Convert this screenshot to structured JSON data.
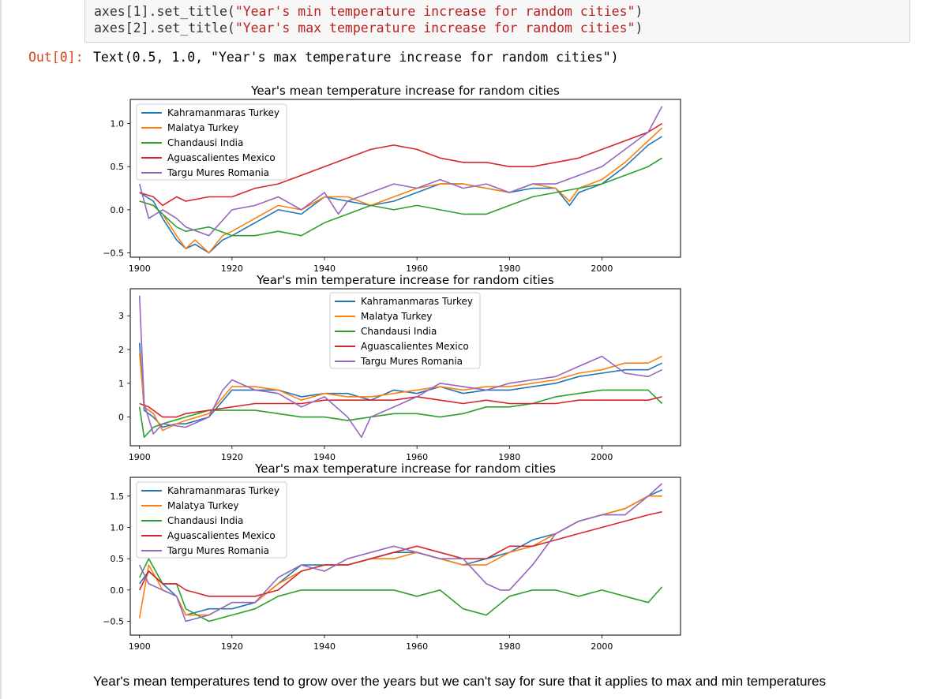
{
  "code_cell": {
    "lines": [
      "axes[1].set_title(\"Year's min temperature increase for random cities\")",
      "axes[2].set_title(\"Year's max temperature increase for random cities\")"
    ],
    "line_parts": [
      {
        "prefix": "axes[1].set_title(",
        "string": "\"Year's min temperature increase for random cities\"",
        "suffix": ")"
      },
      {
        "prefix": "axes[2].set_title(",
        "string": "\"Year's max temperature increase for random cities\"",
        "suffix": ")"
      }
    ]
  },
  "output": {
    "prompt": "Out[0]:",
    "text": "Text(0.5, 1.0, \"Year's max temperature increase for random cities\")"
  },
  "markdown": {
    "text": "Year's mean temperatures tend to grow over the years but we can't say for sure that it applies to max and min temperatures"
  },
  "series_colors": [
    "#1f77b4",
    "#ff7f0e",
    "#2ca02c",
    "#d62728",
    "#9467bd"
  ],
  "chart_data": [
    {
      "type": "line",
      "title": "Year's mean temperature increase for random cities",
      "xlabel": "",
      "ylabel": "",
      "xlim": [
        1898,
        2017
      ],
      "ylim": [
        -0.55,
        1.28
      ],
      "xticks": [
        1900,
        1920,
        1940,
        1960,
        1980,
        2000
      ],
      "yticks": [
        -0.5,
        0.0,
        0.5,
        1.0
      ],
      "ytick_labels": [
        "−0.5",
        "0.0",
        "0.5",
        "1.0"
      ],
      "legend_placement": "upper-left",
      "series": [
        {
          "name": "Kahramanmaras Turkey",
          "x": [
            1900,
            1903,
            1905,
            1908,
            1910,
            1912,
            1915,
            1918,
            1920,
            1925,
            1930,
            1935,
            1940,
            1945,
            1950,
            1955,
            1960,
            1965,
            1970,
            1975,
            1980,
            1985,
            1990,
            1993,
            1995,
            2000,
            2005,
            2010,
            2013
          ],
          "y": [
            0.2,
            0.1,
            -0.1,
            -0.35,
            -0.45,
            -0.4,
            -0.5,
            -0.35,
            -0.3,
            -0.15,
            0.0,
            -0.05,
            0.15,
            0.1,
            0.05,
            0.1,
            0.2,
            0.3,
            0.3,
            0.25,
            0.2,
            0.25,
            0.25,
            0.05,
            0.2,
            0.3,
            0.5,
            0.75,
            0.85
          ]
        },
        {
          "name": "Malatya Turkey",
          "x": [
            1900,
            1903,
            1905,
            1908,
            1910,
            1912,
            1915,
            1918,
            1920,
            1925,
            1930,
            1935,
            1940,
            1945,
            1950,
            1955,
            1960,
            1965,
            1970,
            1975,
            1980,
            1985,
            1990,
            1993,
            1995,
            2000,
            2005,
            2010,
            2013
          ],
          "y": [
            0.1,
            0.05,
            -0.05,
            -0.3,
            -0.45,
            -0.35,
            -0.5,
            -0.3,
            -0.25,
            -0.1,
            0.05,
            0.0,
            0.15,
            0.15,
            0.05,
            0.15,
            0.25,
            0.3,
            0.3,
            0.25,
            0.2,
            0.3,
            0.25,
            0.1,
            0.25,
            0.35,
            0.55,
            0.8,
            0.95
          ]
        },
        {
          "name": "Chandausi India",
          "x": [
            1900,
            1903,
            1905,
            1908,
            1910,
            1915,
            1920,
            1925,
            1930,
            1935,
            1940,
            1945,
            1950,
            1955,
            1960,
            1965,
            1970,
            1975,
            1980,
            1985,
            1990,
            1995,
            2000,
            2005,
            2010,
            2013
          ],
          "y": [
            0.1,
            0.05,
            -0.05,
            -0.2,
            -0.25,
            -0.2,
            -0.3,
            -0.3,
            -0.25,
            -0.3,
            -0.15,
            -0.05,
            0.05,
            0.0,
            0.05,
            0.0,
            -0.05,
            -0.05,
            0.05,
            0.15,
            0.2,
            0.25,
            0.3,
            0.4,
            0.5,
            0.6
          ]
        },
        {
          "name": "Aguascalientes Mexico",
          "x": [
            1900,
            1903,
            1905,
            1908,
            1910,
            1915,
            1920,
            1925,
            1930,
            1935,
            1940,
            1945,
            1950,
            1955,
            1960,
            1965,
            1970,
            1975,
            1980,
            1985,
            1990,
            1995,
            2000,
            2005,
            2010,
            2013
          ],
          "y": [
            0.2,
            0.15,
            0.05,
            0.15,
            0.1,
            0.15,
            0.15,
            0.25,
            0.3,
            0.4,
            0.5,
            0.6,
            0.7,
            0.75,
            0.7,
            0.6,
            0.55,
            0.55,
            0.5,
            0.5,
            0.55,
            0.6,
            0.7,
            0.8,
            0.9,
            1.0
          ]
        },
        {
          "name": "Targu Mures Romania",
          "x": [
            1900,
            1902,
            1905,
            1908,
            1910,
            1915,
            1920,
            1925,
            1930,
            1935,
            1940,
            1943,
            1945,
            1950,
            1955,
            1960,
            1965,
            1970,
            1975,
            1980,
            1985,
            1990,
            1995,
            2000,
            2005,
            2010,
            2013
          ],
          "y": [
            0.3,
            -0.1,
            0.0,
            -0.1,
            -0.2,
            -0.3,
            0.0,
            0.05,
            0.15,
            0.0,
            0.2,
            -0.05,
            0.1,
            0.2,
            0.3,
            0.25,
            0.35,
            0.25,
            0.3,
            0.2,
            0.3,
            0.3,
            0.4,
            0.5,
            0.7,
            0.9,
            1.2
          ]
        }
      ]
    },
    {
      "type": "line",
      "title": "Year's min temperature increase for random cities",
      "xlabel": "",
      "ylabel": "",
      "xlim": [
        1898,
        2017
      ],
      "ylim": [
        -0.85,
        3.8
      ],
      "xticks": [
        1900,
        1920,
        1940,
        1960,
        1980,
        2000
      ],
      "yticks": [
        0,
        1,
        2,
        3
      ],
      "ytick_labels": [
        "0",
        "1",
        "2",
        "3"
      ],
      "legend_placement": "upper-center",
      "series": [
        {
          "name": "Kahramanmaras Turkey",
          "x": [
            1900,
            1901,
            1903,
            1905,
            1908,
            1910,
            1915,
            1920,
            1925,
            1930,
            1935,
            1940,
            1945,
            1950,
            1955,
            1960,
            1965,
            1970,
            1975,
            1980,
            1985,
            1990,
            1995,
            2000,
            2005,
            2010,
            2013
          ],
          "y": [
            2.2,
            0.2,
            0.0,
            -0.3,
            -0.2,
            -0.2,
            0.0,
            0.8,
            0.8,
            0.8,
            0.6,
            0.7,
            0.7,
            0.5,
            0.8,
            0.7,
            0.9,
            0.7,
            0.8,
            0.8,
            0.9,
            1.0,
            1.2,
            1.3,
            1.4,
            1.4,
            1.6
          ]
        },
        {
          "name": "Malatya Turkey",
          "x": [
            1900,
            1901,
            1903,
            1905,
            1908,
            1910,
            1915,
            1920,
            1925,
            1930,
            1935,
            1940,
            1945,
            1950,
            1955,
            1960,
            1965,
            1970,
            1975,
            1980,
            1985,
            1990,
            1995,
            2000,
            2005,
            2010,
            2013
          ],
          "y": [
            1.9,
            0.3,
            0.1,
            -0.4,
            -0.2,
            -0.1,
            0.1,
            0.9,
            0.9,
            0.8,
            0.5,
            0.7,
            0.6,
            0.6,
            0.7,
            0.8,
            0.9,
            0.8,
            0.9,
            0.9,
            1.0,
            1.1,
            1.3,
            1.4,
            1.6,
            1.6,
            1.8
          ]
        },
        {
          "name": "Chandausi India",
          "x": [
            1900,
            1901,
            1903,
            1905,
            1910,
            1915,
            1920,
            1925,
            1930,
            1935,
            1940,
            1945,
            1950,
            1955,
            1960,
            1965,
            1970,
            1975,
            1980,
            1985,
            1990,
            1995,
            2000,
            2005,
            2010,
            2013
          ],
          "y": [
            0.3,
            -0.6,
            -0.3,
            -0.2,
            0.0,
            0.2,
            0.2,
            0.2,
            0.1,
            0.0,
            0.0,
            -0.1,
            0.0,
            0.1,
            0.1,
            0.0,
            0.1,
            0.3,
            0.3,
            0.4,
            0.6,
            0.7,
            0.8,
            0.8,
            0.8,
            0.4
          ]
        },
        {
          "name": "Aguascalientes Mexico",
          "x": [
            1900,
            1902,
            1905,
            1908,
            1910,
            1915,
            1920,
            1925,
            1930,
            1935,
            1940,
            1945,
            1950,
            1955,
            1960,
            1965,
            1970,
            1975,
            1980,
            1985,
            1990,
            1995,
            2000,
            2005,
            2010,
            2013
          ],
          "y": [
            0.4,
            0.3,
            0.0,
            0.0,
            0.1,
            0.2,
            0.3,
            0.4,
            0.4,
            0.4,
            0.5,
            0.5,
            0.5,
            0.5,
            0.6,
            0.5,
            0.4,
            0.5,
            0.4,
            0.4,
            0.4,
            0.5,
            0.5,
            0.5,
            0.5,
            0.6
          ]
        },
        {
          "name": "Targu Mures Romania",
          "x": [
            1900,
            1901,
            1903,
            1905,
            1910,
            1915,
            1918,
            1920,
            1925,
            1930,
            1935,
            1940,
            1945,
            1948,
            1950,
            1955,
            1960,
            1965,
            1970,
            1975,
            1980,
            1985,
            1990,
            1995,
            2000,
            2005,
            2010,
            2013
          ],
          "y": [
            3.6,
            0.4,
            -0.5,
            -0.2,
            -0.3,
            0.0,
            0.8,
            1.1,
            0.8,
            0.7,
            0.3,
            0.6,
            0.0,
            -0.6,
            0.0,
            0.3,
            0.6,
            1.0,
            0.9,
            0.8,
            1.0,
            1.1,
            1.2,
            1.5,
            1.8,
            1.3,
            1.2,
            1.4
          ]
        }
      ]
    },
    {
      "type": "line",
      "title": "Year's max temperature increase for random cities",
      "xlabel": "",
      "ylabel": "",
      "xlim": [
        1898,
        2017
      ],
      "ylim": [
        -0.72,
        1.8
      ],
      "xticks": [
        1900,
        1920,
        1940,
        1960,
        1980,
        2000
      ],
      "yticks": [
        -0.5,
        0.0,
        0.5,
        1.0,
        1.5
      ],
      "ytick_labels": [
        "−0.5",
        "0.0",
        "0.5",
        "1.0",
        "1.5"
      ],
      "legend_placement": "upper-left",
      "series": [
        {
          "name": "Kahramanmaras Turkey",
          "x": [
            1900,
            1902,
            1905,
            1908,
            1910,
            1915,
            1920,
            1925,
            1930,
            1935,
            1940,
            1945,
            1950,
            1955,
            1960,
            1965,
            1970,
            1975,
            1980,
            1985,
            1990,
            1995,
            2000,
            2005,
            2010,
            2013
          ],
          "y": [
            0.1,
            0.3,
            0.1,
            -0.1,
            -0.4,
            -0.3,
            -0.3,
            -0.2,
            0.1,
            0.4,
            0.4,
            0.4,
            0.5,
            0.6,
            0.6,
            0.5,
            0.4,
            0.5,
            0.6,
            0.8,
            0.9,
            1.1,
            1.2,
            1.3,
            1.5,
            1.6
          ]
        },
        {
          "name": "Malatya Turkey",
          "x": [
            1900,
            1902,
            1905,
            1908,
            1910,
            1915,
            1920,
            1925,
            1930,
            1935,
            1940,
            1945,
            1950,
            1955,
            1960,
            1965,
            1970,
            1975,
            1980,
            1985,
            1990,
            1995,
            2000,
            2005,
            2010,
            2013
          ],
          "y": [
            -0.45,
            0.4,
            0.0,
            -0.1,
            -0.4,
            -0.4,
            -0.2,
            -0.2,
            0.1,
            0.3,
            0.4,
            0.4,
            0.5,
            0.5,
            0.6,
            0.5,
            0.4,
            0.4,
            0.6,
            0.7,
            0.9,
            1.1,
            1.2,
            1.3,
            1.5,
            1.5
          ]
        },
        {
          "name": "Chandausi India",
          "x": [
            1900,
            1902,
            1905,
            1908,
            1910,
            1915,
            1920,
            1925,
            1930,
            1935,
            1940,
            1945,
            1950,
            1955,
            1960,
            1965,
            1970,
            1975,
            1980,
            1985,
            1990,
            1995,
            2000,
            2005,
            2010,
            2013
          ],
          "y": [
            0.2,
            0.5,
            0.1,
            0.1,
            -0.3,
            -0.5,
            -0.4,
            -0.3,
            -0.1,
            0.0,
            0.0,
            0.0,
            0.0,
            0.0,
            -0.1,
            0.0,
            -0.3,
            -0.4,
            -0.1,
            0.0,
            0.0,
            -0.1,
            0.0,
            -0.1,
            -0.2,
            0.05
          ]
        },
        {
          "name": "Aguascalientes Mexico",
          "x": [
            1900,
            1902,
            1905,
            1908,
            1910,
            1915,
            1920,
            1925,
            1930,
            1935,
            1940,
            1945,
            1950,
            1955,
            1960,
            1965,
            1970,
            1975,
            1980,
            1985,
            1990,
            1995,
            2000,
            2005,
            2010,
            2013
          ],
          "y": [
            0.0,
            0.3,
            0.1,
            0.1,
            0.0,
            -0.1,
            -0.1,
            -0.1,
            0.0,
            0.3,
            0.4,
            0.4,
            0.5,
            0.6,
            0.7,
            0.6,
            0.5,
            0.5,
            0.7,
            0.7,
            0.8,
            0.9,
            1.0,
            1.1,
            1.2,
            1.25
          ]
        },
        {
          "name": "Targu Mures Romania",
          "x": [
            1900,
            1902,
            1905,
            1908,
            1910,
            1915,
            1920,
            1925,
            1930,
            1935,
            1940,
            1945,
            1950,
            1955,
            1960,
            1965,
            1970,
            1975,
            1978,
            1980,
            1985,
            1990,
            1995,
            2000,
            2005,
            2010,
            2013
          ],
          "y": [
            0.4,
            0.1,
            0.0,
            -0.1,
            -0.5,
            -0.4,
            -0.2,
            -0.2,
            0.2,
            0.4,
            0.3,
            0.5,
            0.6,
            0.7,
            0.6,
            0.5,
            0.5,
            0.1,
            0.0,
            0.0,
            0.4,
            0.9,
            1.1,
            1.2,
            1.2,
            1.5,
            1.7
          ]
        }
      ]
    }
  ]
}
